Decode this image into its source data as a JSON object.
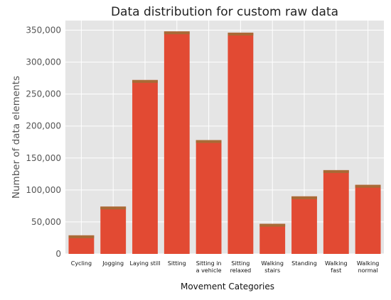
{
  "chart_data": {
    "type": "bar",
    "title": "Data distribution for custom raw data",
    "xlabel": "Movement Categories",
    "ylabel": "Number of data elements",
    "categories": [
      [
        "Cycling"
      ],
      [
        "Jogging"
      ],
      [
        "Laying still"
      ],
      [
        "Sitting"
      ],
      [
        "Sitting in",
        "a vehicle"
      ],
      [
        "Sitting",
        "relaxed"
      ],
      [
        "Walking",
        "stairs"
      ],
      [
        "Standing"
      ],
      [
        "Walking",
        "fast"
      ],
      [
        "Walking",
        "normal"
      ]
    ],
    "values": [
      29000,
      74000,
      272000,
      348000,
      178000,
      346000,
      47000,
      90000,
      131000,
      108000
    ],
    "ylim": [
      0,
      365000
    ],
    "yticks": [
      0,
      50000,
      100000,
      150000,
      200000,
      250000,
      300000,
      350000
    ],
    "ytick_labels": [
      "0",
      "50,000",
      "100,000",
      "150,000",
      "200,000",
      "250,000",
      "300,000",
      "350,000"
    ],
    "grid": true,
    "colors": {
      "bar": "#e24a33",
      "bar_top": "#a86a36",
      "background": "#e5e5e5",
      "grid": "#ffffff"
    }
  }
}
